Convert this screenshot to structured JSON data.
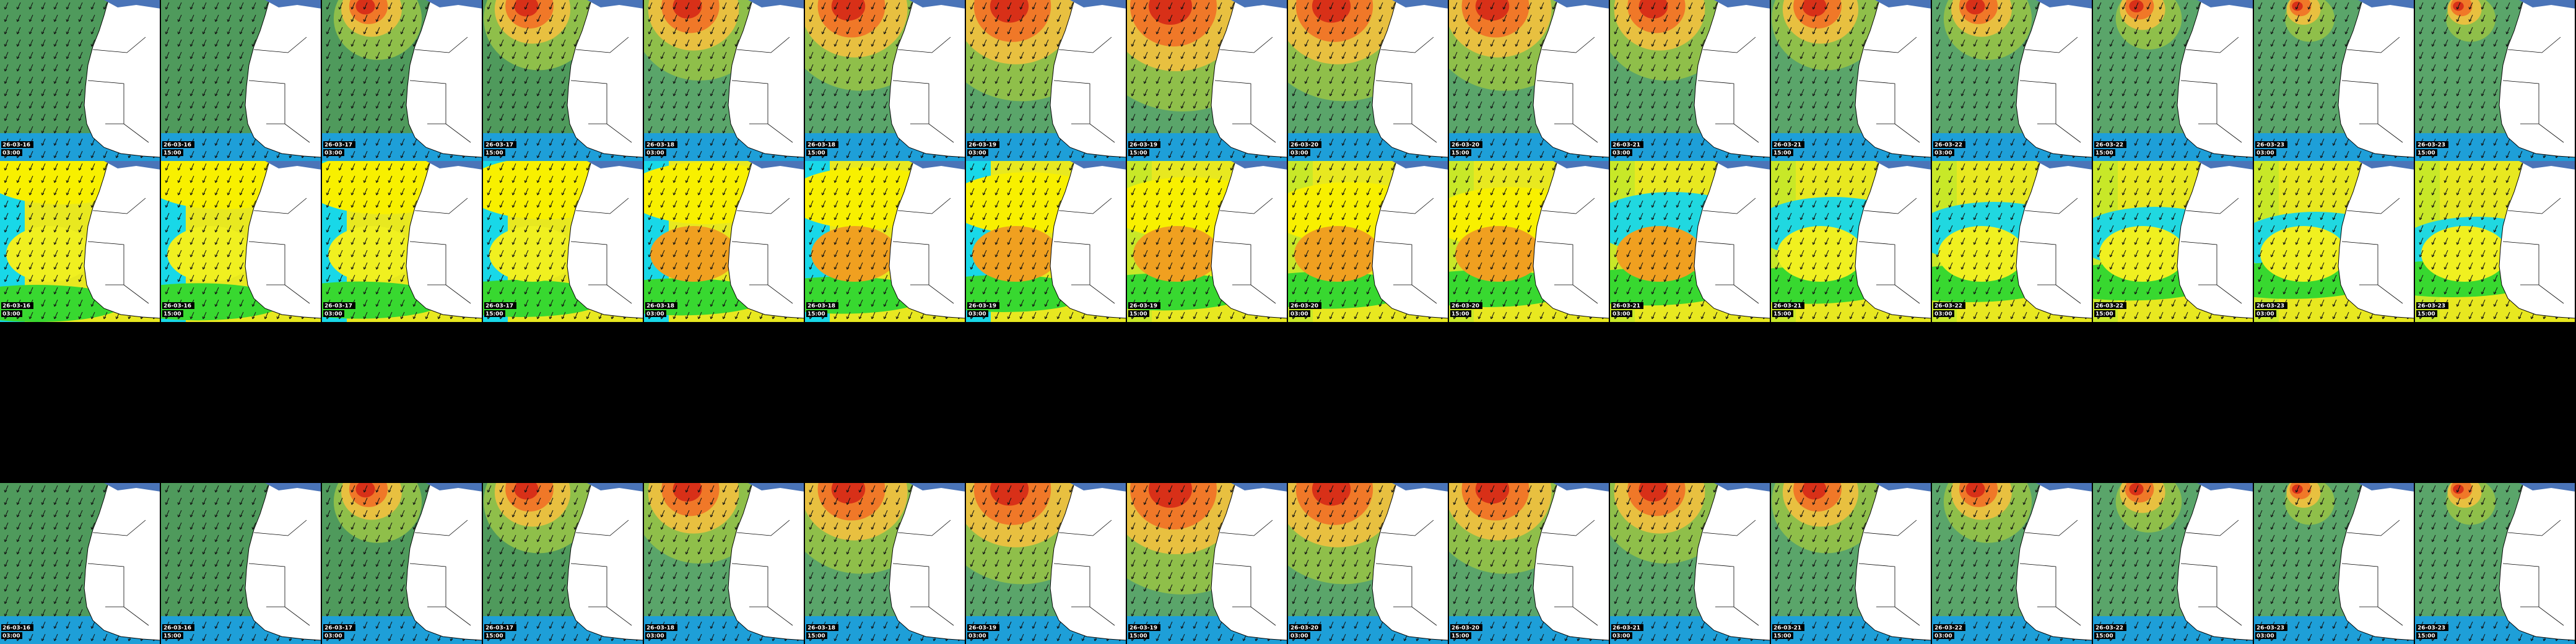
{
  "rows": [
    {
      "panels": [
        {
          "date": "26-03-16",
          "time": "03:00"
        },
        {
          "date": "26-03-16",
          "time": "15:00"
        },
        {
          "date": "26-03-17",
          "time": "03:00"
        },
        {
          "date": "26-03-17",
          "time": "15:00"
        },
        {
          "date": "26-03-18",
          "time": "03:00"
        },
        {
          "date": "26-03-18",
          "time": "15:00"
        },
        {
          "date": "26-03-19",
          "time": "03:00"
        },
        {
          "date": "26-03-19",
          "time": "15:00"
        },
        {
          "date": "26-03-20",
          "time": "03:00"
        },
        {
          "date": "26-03-20",
          "time": "15:00"
        },
        {
          "date": "26-03-21",
          "time": "03:00"
        },
        {
          "date": "26-03-21",
          "time": "15:00"
        },
        {
          "date": "26-03-22",
          "time": "03:00"
        },
        {
          "date": "26-03-22",
          "time": "15:00"
        },
        {
          "date": "26-03-23",
          "time": "03:00"
        },
        {
          "date": "26-03-23",
          "time": "15:00"
        }
      ]
    },
    {
      "panels": [
        {
          "date": "26-03-16",
          "time": "03:00"
        },
        {
          "date": "26-03-16",
          "time": "15:00"
        },
        {
          "date": "26-03-17",
          "time": "03:00"
        },
        {
          "date": "26-03-17",
          "time": "15:00"
        },
        {
          "date": "26-03-18",
          "time": "03:00"
        },
        {
          "date": "26-03-18",
          "time": "15:00"
        },
        {
          "date": "26-03-19",
          "time": "03:00"
        },
        {
          "date": "26-03-19",
          "time": "15:00"
        },
        {
          "date": "26-03-20",
          "time": "03:00"
        },
        {
          "date": "26-03-20",
          "time": "15:00"
        },
        {
          "date": "26-03-21",
          "time": "03:00"
        },
        {
          "date": "26-03-21",
          "time": "15:00"
        },
        {
          "date": "26-03-22",
          "time": "03:00"
        },
        {
          "date": "26-03-22",
          "time": "15:00"
        },
        {
          "date": "26-03-23",
          "time": "03:00"
        },
        {
          "date": "26-03-23",
          "time": "15:00"
        }
      ]
    },
    {
      "panels": [
        {
          "date": "26-03-16",
          "time": "03:00"
        },
        {
          "date": "26-03-16",
          "time": "15:00"
        },
        {
          "date": "26-03-17",
          "time": "03:00"
        },
        {
          "date": "26-03-17",
          "time": "15:00"
        },
        {
          "date": "26-03-18",
          "time": "03:00"
        },
        {
          "date": "26-03-18",
          "time": "15:00"
        },
        {
          "date": "26-03-19",
          "time": "03:00"
        },
        {
          "date": "26-03-19",
          "time": "15:00"
        },
        {
          "date": "26-03-20",
          "time": "03:00"
        },
        {
          "date": "26-03-20",
          "time": "15:00"
        },
        {
          "date": "26-03-21",
          "time": "03:00"
        },
        {
          "date": "26-03-21",
          "time": "15:00"
        },
        {
          "date": "26-03-22",
          "time": "03:00"
        },
        {
          "date": "26-03-22",
          "time": "15:00"
        },
        {
          "date": "26-03-23",
          "time": "03:00"
        },
        {
          "date": "26-03-23",
          "time": "15:00"
        }
      ]
    }
  ]
}
